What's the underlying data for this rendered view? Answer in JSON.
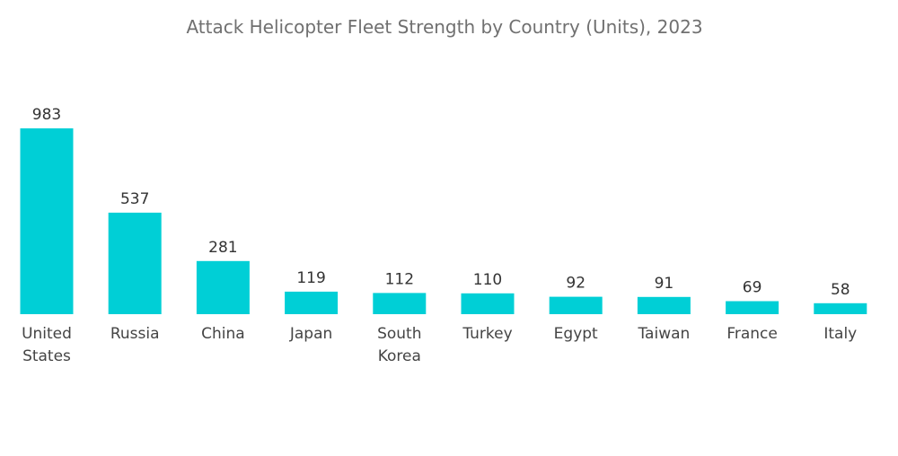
{
  "chart_data": {
    "type": "bar",
    "title": "Attack Helicopter Fleet Strength by Country (Units), 2023",
    "xlabel": "",
    "ylabel": "",
    "ylim": [
      0,
      983
    ],
    "grid": false,
    "legend": "none",
    "bar_color": "#00cfd6",
    "categories": [
      [
        "United",
        "States"
      ],
      [
        "Russia"
      ],
      [
        "China"
      ],
      [
        "Japan"
      ],
      [
        "South",
        "Korea"
      ],
      [
        "Turkey"
      ],
      [
        "Egypt"
      ],
      [
        "Taiwan"
      ],
      [
        "France"
      ],
      [
        "Italy"
      ]
    ],
    "category_slugs": [
      "united-states",
      "russia",
      "china",
      "japan",
      "south-korea",
      "turkey",
      "egypt",
      "taiwan",
      "france",
      "italy"
    ],
    "values": [
      983,
      537,
      281,
      119,
      112,
      110,
      92,
      91,
      69,
      58
    ],
    "value_labels": [
      "983",
      "537",
      "281",
      "119",
      "112",
      "110",
      "92",
      "91",
      "69",
      "58"
    ]
  }
}
